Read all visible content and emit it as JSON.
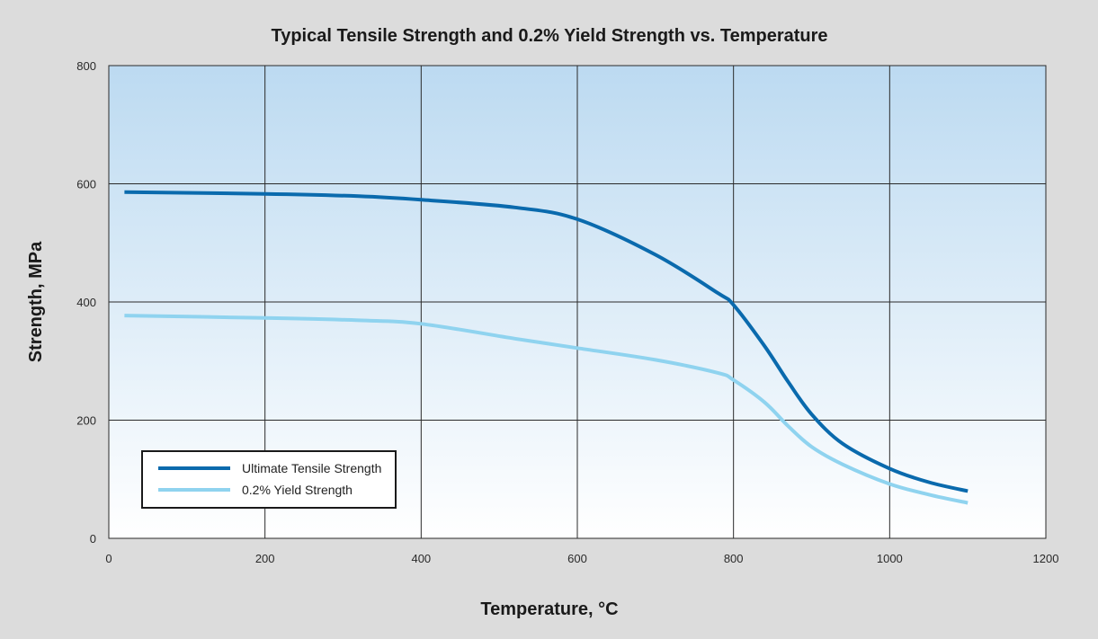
{
  "chart_data": {
    "type": "line",
    "title": "Typical Tensile Strength and 0.2% Yield Strength vs. Temperature",
    "xlabel": "Temperature, °C",
    "ylabel": "Strength, MPa",
    "xlim": [
      0,
      1200
    ],
    "ylim": [
      0,
      800
    ],
    "x_ticks": [
      0,
      200,
      400,
      600,
      800,
      1000,
      1200
    ],
    "y_ticks": [
      0,
      200,
      400,
      600,
      800
    ],
    "grid": true,
    "legend_position": "bottom-left",
    "colors": {
      "background": "#dcdcdc",
      "plot_top": "#bcdaf1",
      "plot_bottom": "#ffffff",
      "grid": "#2a2a2a"
    },
    "series": [
      {
        "name": "Ultimate Tensile Strength",
        "color": "#0a6aad",
        "x": [
          20,
          200,
          320,
          400,
          520,
          600,
          700,
          780,
          800,
          840,
          870,
          900,
          940,
          1000,
          1050,
          1100
        ],
        "values": [
          586,
          583,
          579,
          573,
          560,
          540,
          480,
          415,
          395,
          325,
          265,
          210,
          160,
          118,
          95,
          80
        ]
      },
      {
        "name": "0.2% Yield Strength",
        "color": "#8fd3ef",
        "x": [
          20,
          200,
          320,
          400,
          520,
          600,
          700,
          780,
          800,
          840,
          870,
          900,
          940,
          1000,
          1050,
          1100
        ],
        "values": [
          377,
          373,
          369,
          363,
          338,
          322,
          302,
          280,
          268,
          230,
          190,
          155,
          125,
          92,
          74,
          60
        ]
      }
    ]
  }
}
